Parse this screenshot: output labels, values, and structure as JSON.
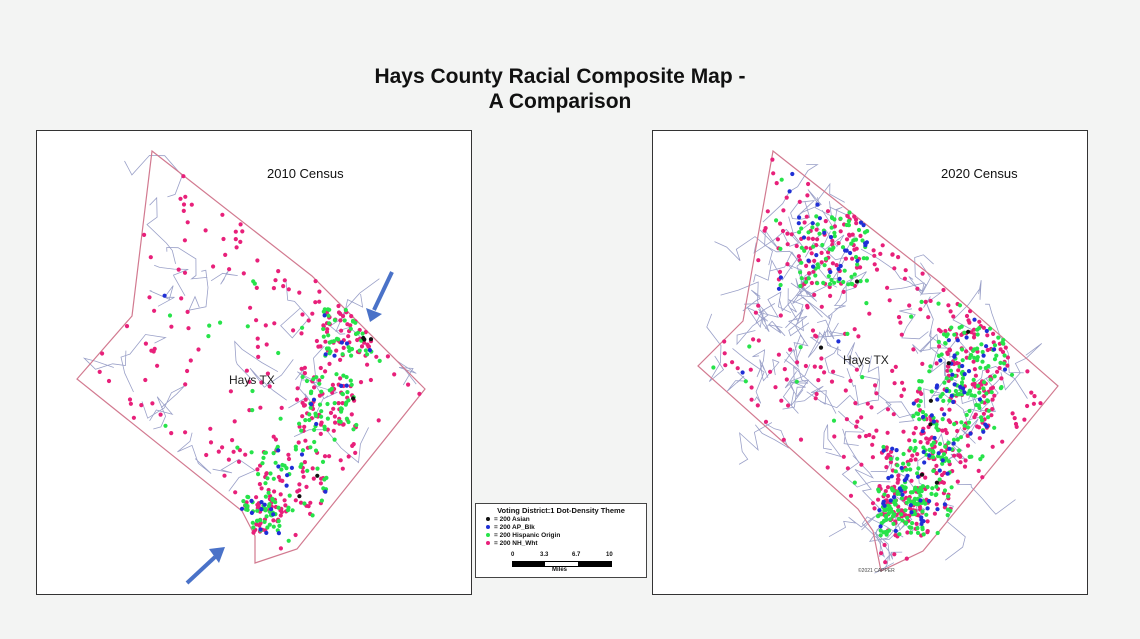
{
  "title": {
    "line1": "Hays County Racial Composite Map -",
    "line2": "A Comparison"
  },
  "maps": [
    {
      "census_label": "2010 Census",
      "county_label": "Hays TX"
    },
    {
      "census_label": "2020 Census",
      "county_label": "Hays TX",
      "copyright": "©2021 CAPPER"
    }
  ],
  "legend": {
    "title": "Voting District:1 Dot-Density Theme",
    "items": [
      {
        "label": "= 200 Asian",
        "color": "#111111"
      },
      {
        "label": "= 200 AP_Blk",
        "color": "#1f2fd6"
      },
      {
        "label": "= 200 Hispanic Origin",
        "color": "#27e34a"
      },
      {
        "label": "= 200 NH_Wht",
        "color": "#e8207a"
      }
    ],
    "scale_ticks": [
      "0",
      "3.3",
      "6.7",
      "10"
    ],
    "scale_unit": "Miles"
  },
  "colors": {
    "asian": "#111111",
    "black": "#1f2fd6",
    "hispanic": "#27e34a",
    "white": "#e8207a",
    "county_border": "#d27a90",
    "district_lines": "#9aa0c8",
    "arrow": "#4a72c8"
  }
}
